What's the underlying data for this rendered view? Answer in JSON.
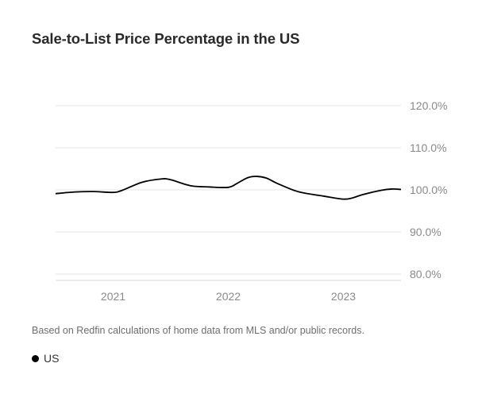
{
  "title": "Sale-to-List Price Percentage in the US",
  "footnote": "Based on Redfin calculations of home data from MLS and/or public records.",
  "legend": [
    {
      "label": "US",
      "color": "#000000"
    }
  ],
  "chart_data": {
    "type": "line",
    "title": "Sale-to-List Price Percentage in the US",
    "xlabel": "",
    "ylabel": "",
    "xlim": [
      2020.5,
      2023.5
    ],
    "ylim": [
      80,
      120
    ],
    "y_ticks": [
      "80.0%",
      "90.0%",
      "100.0%",
      "110.0%",
      "120.0%"
    ],
    "y_tick_values": [
      80,
      90,
      100,
      110,
      120
    ],
    "x_ticks": [
      "2021",
      "2022",
      "2023"
    ],
    "x_tick_values": [
      2021,
      2022,
      2023
    ],
    "grid": true,
    "y_axis_side": "right",
    "legend_position": "bottom-left",
    "series": [
      {
        "name": "US",
        "color": "#000000",
        "x": [
          2020.5,
          2020.67,
          2020.83,
          2021.0,
          2021.08,
          2021.25,
          2021.42,
          2021.5,
          2021.67,
          2021.83,
          2022.0,
          2022.08,
          2022.17,
          2022.25,
          2022.33,
          2022.42,
          2022.58,
          2022.67,
          2022.83,
          2023.0,
          2023.08,
          2023.17,
          2023.33,
          2023.42,
          2023.5
        ],
        "values": [
          99.1,
          99.5,
          99.6,
          99.4,
          99.9,
          101.8,
          102.6,
          102.4,
          101.0,
          100.7,
          100.6,
          101.6,
          102.9,
          103.2,
          102.8,
          101.6,
          99.8,
          99.2,
          98.5,
          97.8,
          98.1,
          98.9,
          99.9,
          100.2,
          100.1
        ]
      }
    ]
  }
}
